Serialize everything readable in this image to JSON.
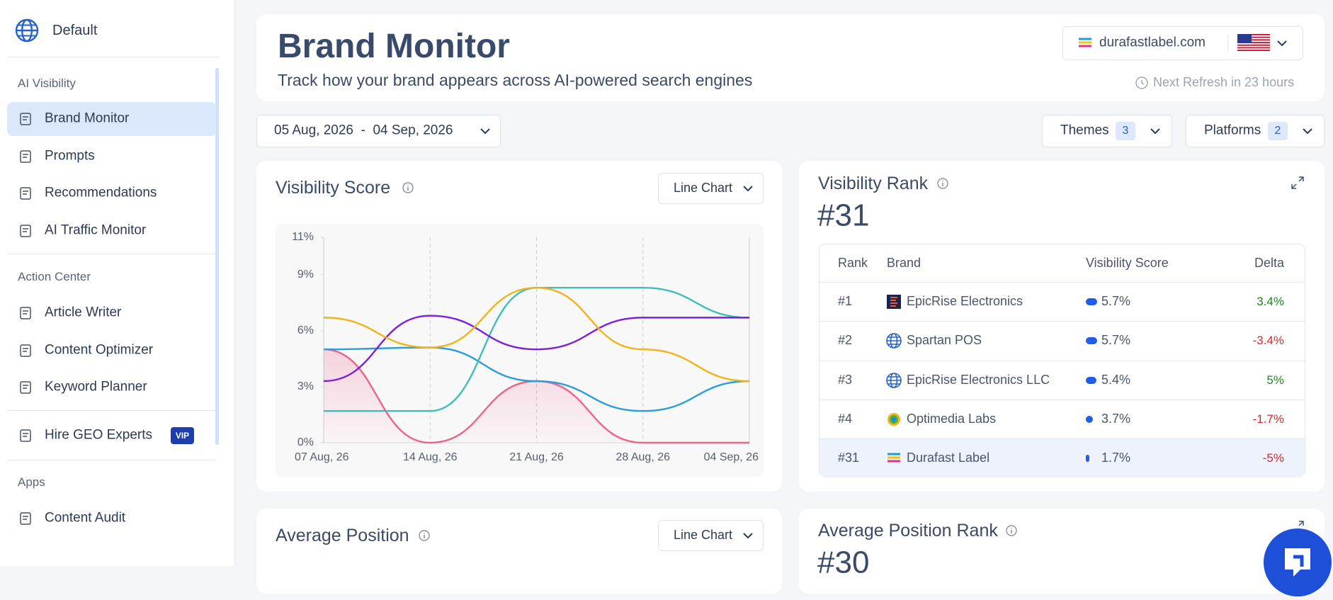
{
  "sidebar": {
    "workspace": "Default",
    "groups": [
      {
        "title": "AI Visibility",
        "items": [
          "Brand Monitor",
          "Prompts",
          "Recommendations",
          "AI Traffic Monitor"
        ]
      },
      {
        "title": "Action Center",
        "items": [
          "Article Writer",
          "Content Optimizer",
          "Keyword Planner"
        ]
      }
    ],
    "hire": {
      "label": "Hire GEO Experts",
      "badge": "VIP"
    },
    "apps": {
      "title": "Apps",
      "items": [
        "Content Audit"
      ]
    },
    "active": "Brand Monitor"
  },
  "header": {
    "title": "Brand Monitor",
    "subtitle": "Track how your brand appears across AI-powered search engines",
    "domain": "durafastlabel.com",
    "refresh": "Next Refresh in 23 hours"
  },
  "filters": {
    "date_range": "05 Aug, 2026  -  04 Sep, 2026",
    "themes": {
      "label": "Themes",
      "count": "3"
    },
    "platforms": {
      "label": "Platforms",
      "count": "2"
    }
  },
  "chart_data": {
    "type": "line",
    "title": "Visibility Score",
    "view": "Line Chart",
    "categories": [
      "07 Aug, 26",
      "14 Aug, 26",
      "21 Aug, 26",
      "28 Aug, 26",
      "04 Sep, 26"
    ],
    "ylim": [
      0,
      11
    ],
    "yticks": [
      {
        "value": 0,
        "label": "0%"
      },
      {
        "value": 3,
        "label": "3%"
      },
      {
        "value": 6,
        "label": "6%"
      },
      {
        "value": 9,
        "label": "9%"
      },
      {
        "value": 11,
        "label": "11%"
      }
    ],
    "grid": true,
    "series": [
      {
        "color": "#f06287",
        "values": [
          5.0,
          0,
          3.3,
          0,
          0
        ],
        "area": true
      },
      {
        "color": "#2a9ddb",
        "values": [
          5.0,
          5.1,
          3.3,
          1.7,
          3.3
        ]
      },
      {
        "color": "#3cbfb9",
        "values": [
          1.7,
          1.7,
          8.3,
          8.3,
          6.7
        ]
      },
      {
        "color": "#7c1ee0",
        "values": [
          3.3,
          6.8,
          5.0,
          6.7,
          6.7
        ]
      },
      {
        "color": "#f0b31a",
        "values": [
          6.7,
          5.1,
          8.3,
          5.0,
          3.3
        ]
      }
    ]
  },
  "rank_card": {
    "title": "Visibility Rank",
    "value": "#31",
    "columns": [
      "Rank",
      "Brand",
      "Visibility Score",
      "Delta"
    ],
    "highlight": 4,
    "rows": [
      {
        "rank": "#1",
        "brand": "EpicRise Electronics",
        "score": 5.7,
        "score_label": "5.7%",
        "delta": 3.4,
        "delta_label": "3.4%"
      },
      {
        "rank": "#2",
        "brand": "Spartan POS",
        "score": 5.7,
        "score_label": "5.7%",
        "delta": -3.4,
        "delta_label": "-3.4%"
      },
      {
        "rank": "#3",
        "brand": "EpicRise Electronics LLC",
        "score": 5.4,
        "score_label": "5.4%",
        "delta": 5,
        "delta_label": "5%"
      },
      {
        "rank": "#4",
        "brand": "Optimedia Labs",
        "score": 3.7,
        "score_label": "3.7%",
        "delta": -1.7,
        "delta_label": "-1.7%"
      },
      {
        "rank": "#31",
        "brand": "Durafast Label",
        "score": 1.7,
        "score_label": "1.7%",
        "delta": -5,
        "delta_label": "-5%"
      }
    ]
  },
  "avg_position": {
    "title": "Average Position",
    "view": "Line Chart"
  },
  "avg_rank": {
    "title": "Average Position Rank",
    "value": "#30"
  }
}
